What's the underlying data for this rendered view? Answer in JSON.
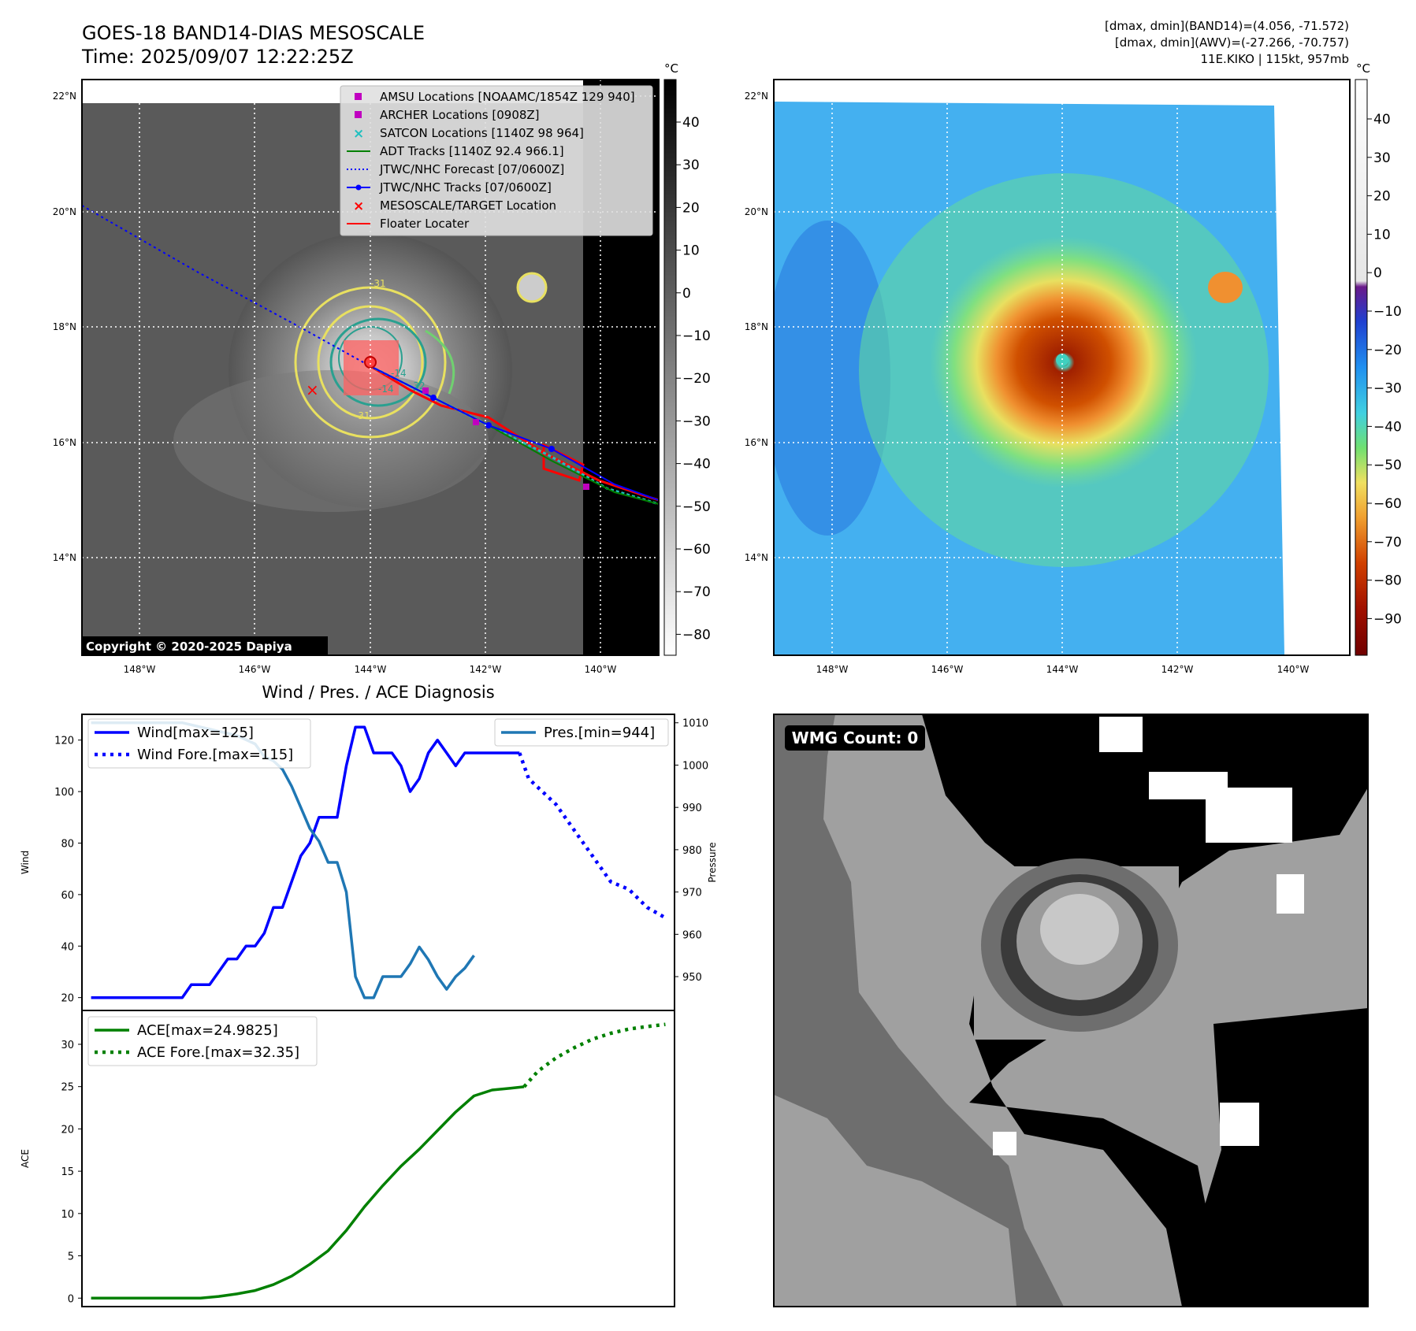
{
  "header": {
    "title_line1": "GOES-18 BAND14-DIAS MESOSCALE",
    "title_line2": "Time: 2025/09/07 12:22:25Z",
    "right_line1": "[dmax, dmin](BAND14)=(4.056, -71.572)",
    "right_line2": "[dmax, dmin](AWV)=(-27.266, -70.757)",
    "right_line3": "11E.KIKO | 115kt, 957mb"
  },
  "map": {
    "lat_labels": [
      "22°N",
      "20°N",
      "18°N",
      "16°N",
      "14°N"
    ],
    "lon_labels": [
      "148°W",
      "146°W",
      "144°W",
      "142°W",
      "140°W"
    ],
    "copyright": "Copyright © 2020-2025 Dapiya",
    "contour_labels": [
      "-31",
      "-31",
      "-14",
      "-14",
      "-32"
    ],
    "legend": [
      {
        "label": "AMSU Locations [NOAAMC/1854Z 129 940]",
        "color": "#c000c0"
      },
      {
        "label": "ARCHER Locations [0908Z]",
        "color": "#c000c0"
      },
      {
        "label": "SATCON Locations [1140Z 98 964]",
        "color": "#20c0c0"
      },
      {
        "label": "ADT Tracks [1140Z 92.4 966.1]",
        "color": "#008000"
      },
      {
        "label": "JTWC/NHC Forecast [07/0600Z]",
        "color": "#0000ff"
      },
      {
        "label": "JTWC/NHC Tracks [07/0600Z]",
        "color": "#0000ff"
      },
      {
        "label": "MESOSCALE/TARGET Location",
        "color": "#ff0000"
      },
      {
        "label": "Floater Locater",
        "color": "#ff0000"
      }
    ]
  },
  "colorbar_gray": {
    "unit": "°C",
    "ticks": [
      "40",
      "30",
      "20",
      "10",
      "0",
      "−10",
      "−20",
      "−30",
      "−40",
      "−50",
      "−60",
      "−70",
      "−80"
    ]
  },
  "colorbar_color": {
    "unit": "°C",
    "ticks": [
      "40",
      "30",
      "20",
      "10",
      "0",
      "−10",
      "−20",
      "−30",
      "−40",
      "−50",
      "−60",
      "−70",
      "−80",
      "−90"
    ]
  },
  "wmg": {
    "label": "WMG Count: 0"
  },
  "chart_data": [
    {
      "type": "line",
      "title": "Wind / Pres. / ACE Diagnosis",
      "ylabel": "Wind",
      "ylim": [
        15,
        130
      ],
      "yticks": [
        20,
        40,
        60,
        80,
        100,
        120
      ],
      "y2label": "Pressure",
      "y2lim": [
        942,
        1012
      ],
      "y2ticks": [
        950,
        960,
        970,
        980,
        990,
        1000,
        1010
      ],
      "xlim": [
        -1,
        64
      ],
      "series": [
        {
          "name": "Wind[max=125]",
          "color": "#0000ff",
          "style": "solid",
          "axis": "left",
          "x": [
            0,
            1,
            2,
            3,
            4,
            5,
            6,
            7,
            8,
            9,
            10,
            11,
            12,
            13,
            14,
            15,
            16,
            17,
            18,
            19,
            20,
            21,
            22,
            23,
            24,
            25,
            26,
            27,
            28,
            29,
            30,
            31,
            32,
            33,
            34,
            35,
            36,
            37,
            38,
            39,
            40,
            41,
            42,
            43,
            44,
            45,
            46,
            47
          ],
          "values": [
            20,
            20,
            20,
            20,
            20,
            20,
            20,
            20,
            20,
            20,
            20,
            25,
            25,
            25,
            30,
            35,
            35,
            40,
            40,
            45,
            55,
            55,
            65,
            75,
            80,
            90,
            90,
            90,
            110,
            125,
            125,
            115,
            115,
            115,
            110,
            100,
            105,
            115,
            120,
            115,
            110,
            115,
            115,
            115,
            115,
            115,
            115,
            115
          ]
        },
        {
          "name": "Wind Fore.[max=115]",
          "color": "#0000ff",
          "style": "dotted",
          "axis": "left",
          "x": [
            47,
            48,
            51,
            53,
            55,
            57,
            59,
            61,
            63
          ],
          "values": [
            115,
            105,
            95,
            85,
            75,
            65,
            62,
            55,
            51
          ]
        },
        {
          "name": "Pres.[min=944]",
          "color": "#1f77b4",
          "style": "solid",
          "axis": "right",
          "x": [
            0,
            2,
            4,
            6,
            8,
            10,
            12,
            14,
            16,
            18,
            19,
            20,
            21,
            22,
            23,
            24,
            25,
            26,
            27,
            28,
            29,
            30,
            31,
            32,
            33,
            34,
            35,
            36,
            37,
            38,
            39,
            40,
            41,
            42
          ],
          "values": [
            1010,
            1010,
            1010,
            1010,
            1010,
            1010,
            1009,
            1008,
            1007,
            1005,
            1002,
            1001,
            999,
            995,
            990,
            985,
            982,
            977,
            977,
            970,
            950,
            945,
            945,
            950,
            950,
            950,
            953,
            957,
            954,
            950,
            947,
            950,
            952,
            955
          ]
        }
      ]
    },
    {
      "type": "line",
      "ylabel": "ACE",
      "ylim": [
        -1,
        34
      ],
      "yticks": [
        0,
        5,
        10,
        15,
        20,
        25,
        30
      ],
      "xlim": [
        -1,
        64
      ],
      "series": [
        {
          "name": "ACE[max=24.9825]",
          "color": "#008000",
          "style": "solid",
          "x": [
            0,
            4,
            8,
            12,
            14,
            16,
            18,
            20,
            22,
            24,
            26,
            28,
            30,
            32,
            34,
            36,
            38,
            40,
            42,
            44,
            46,
            47.5
          ],
          "values": [
            0,
            0,
            0,
            0,
            0.2,
            0.5,
            0.9,
            1.6,
            2.6,
            4.0,
            5.6,
            8.0,
            10.8,
            13.3,
            15.6,
            17.6,
            19.8,
            22.0,
            23.9,
            24.6,
            24.8,
            24.98
          ]
        },
        {
          "name": "ACE Fore.[max=32.35]",
          "color": "#008000",
          "style": "dotted",
          "x": [
            47.5,
            49,
            51,
            53,
            55,
            57,
            59,
            61,
            63
          ],
          "values": [
            24.98,
            26.8,
            28.4,
            29.6,
            30.6,
            31.3,
            31.8,
            32.1,
            32.35
          ]
        }
      ]
    }
  ]
}
